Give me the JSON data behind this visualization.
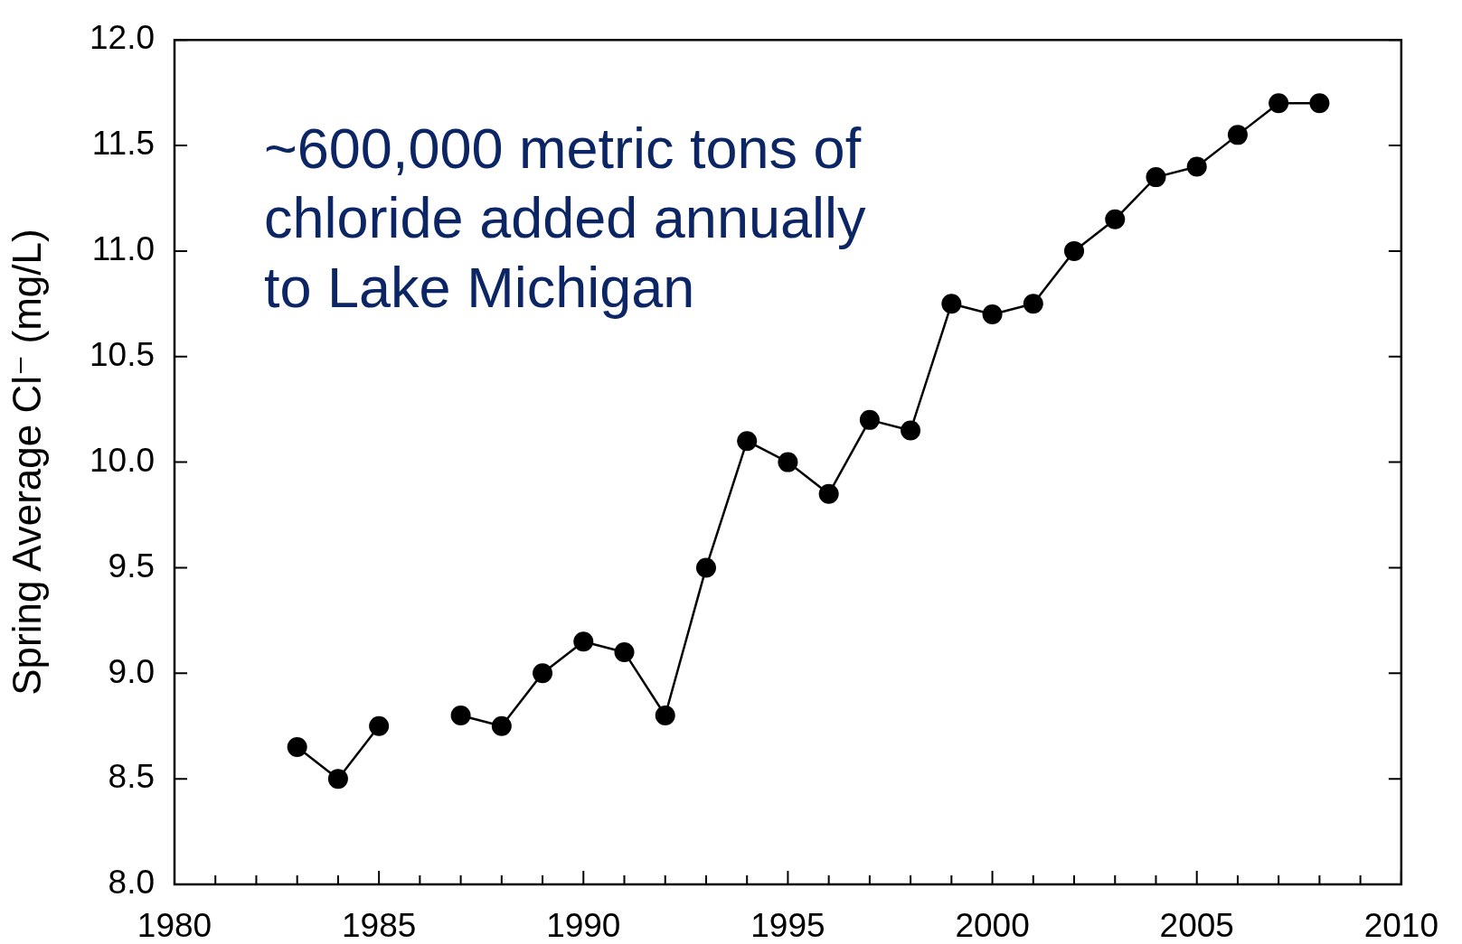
{
  "chart_data": {
    "type": "line",
    "ylabel": "Spring Average Cl⁻ (mg/L)",
    "annotations": [
      "~600,000 metric tons of chloride added annually to Lake Michigan"
    ],
    "x": [
      1983,
      1984,
      1985,
      1986,
      1987,
      1988,
      1989,
      1990,
      1991,
      1992,
      1993,
      1994,
      1995,
      1996,
      1997,
      1998,
      1999,
      2000,
      2001,
      2002,
      2003,
      2004,
      2005,
      2006,
      2007,
      2008
    ],
    "series": [
      {
        "color": "#000000",
        "values": [
          8.65,
          8.5,
          8.75,
          null,
          8.8,
          8.75,
          9.0,
          9.15,
          9.1,
          8.8,
          9.5,
          10.1,
          10.0,
          9.85,
          10.2,
          10.15,
          10.75,
          10.7,
          10.75,
          11.0,
          11.15,
          11.35,
          11.4,
          11.55,
          11.7,
          11.7
        ]
      }
    ],
    "xlim": [
      1980,
      2010
    ],
    "ylim": [
      8,
      12
    ],
    "xticks": [
      1980,
      {
        "value": 1981,
        "label": null
      },
      {
        "value": 1982,
        "label": null
      },
      {
        "value": 1983,
        "label": null
      },
      {
        "value": 1984,
        "label": null
      },
      1985,
      {
        "value": 1986,
        "label": null
      },
      {
        "value": 1987,
        "label": null
      },
      {
        "value": 1988,
        "label": null
      },
      {
        "value": 1989,
        "label": null
      },
      1990,
      {
        "value": 1991,
        "label": null
      },
      {
        "value": 1992,
        "label": null
      },
      {
        "value": 1993,
        "label": null
      },
      {
        "value": 1994,
        "label": null
      },
      1995,
      {
        "value": 1996,
        "label": null
      },
      {
        "value": 1997,
        "label": null
      },
      {
        "value": 1998,
        "label": null
      },
      {
        "value": 1999,
        "label": null
      },
      2000,
      {
        "value": 2001,
        "label": null
      },
      {
        "value": 2002,
        "label": null
      },
      {
        "value": 2003,
        "label": null
      },
      {
        "value": 2004,
        "label": null
      },
      2005,
      {
        "value": 2006,
        "label": null
      },
      {
        "value": 2007,
        "label": null
      },
      {
        "value": 2008,
        "label": null
      },
      {
        "value": 2009,
        "label": null
      },
      2010
    ],
    "yticks": [
      {
        "value": 8,
        "label": "8.0"
      },
      8.5,
      {
        "value": 9,
        "label": "9.0"
      },
      9.5,
      {
        "value": 10,
        "label": "10.0"
      },
      10.5,
      {
        "value": 11,
        "label": "11.0"
      },
      11.5,
      {
        "value": 12,
        "label": "12.0"
      }
    ],
    "marker": "circle",
    "line_style": "solid",
    "legend": false,
    "grid": false
  }
}
